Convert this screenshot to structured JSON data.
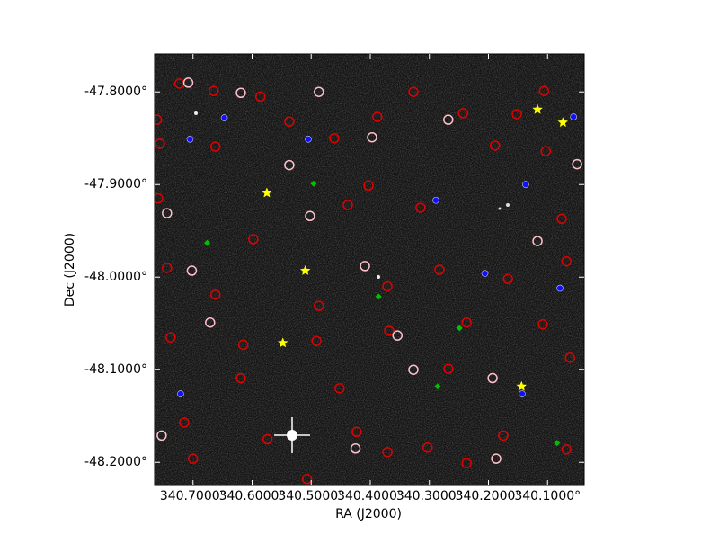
{
  "chart_data": {
    "type": "scatter",
    "xlabel": "RA (J2000)",
    "ylabel": "Dec (J2000)",
    "xlim": [
      340.765,
      340.038
    ],
    "ylim": [
      -48.225,
      -47.759
    ],
    "xticks": [
      {
        "value": 340.7,
        "label": "340.7000°"
      },
      {
        "value": 340.6,
        "label": "340.6000°"
      },
      {
        "value": 340.5,
        "label": "340.5000°"
      },
      {
        "value": 340.4,
        "label": "340.4000°"
      },
      {
        "value": 340.3,
        "label": "340.3000°"
      },
      {
        "value": 340.2,
        "label": "340.2000°"
      },
      {
        "value": 340.1,
        "label": "340.1000°"
      }
    ],
    "yticks": [
      {
        "value": -47.8,
        "label": "-47.8000°"
      },
      {
        "value": -47.9,
        "label": "-47.9000°"
      },
      {
        "value": -48.0,
        "label": "-48.0000°"
      },
      {
        "value": -48.1,
        "label": "-48.1000°"
      },
      {
        "value": -48.2,
        "label": "-48.2000°"
      }
    ],
    "series": [
      {
        "color": "#e00000",
        "marker": "circle",
        "x": [
          340.761,
          340.723,
          340.665,
          340.756,
          340.662,
          340.586,
          340.537,
          340.461,
          340.388,
          340.327,
          340.243,
          340.152,
          340.106,
          340.759,
          340.598,
          340.438,
          340.403,
          340.315,
          340.189,
          340.103,
          340.076,
          340.744,
          340.662,
          340.487,
          340.371,
          340.283,
          340.167,
          340.068,
          340.738,
          340.615,
          340.491,
          340.368,
          340.237,
          340.108,
          340.619,
          340.452,
          340.268,
          340.062,
          340.715,
          340.574,
          340.423,
          340.303,
          340.175,
          340.7,
          340.507,
          340.371,
          340.237,
          340.068
        ],
        "y": [
          -47.83,
          -47.791,
          -47.799,
          -47.856,
          -47.859,
          -47.805,
          -47.832,
          -47.85,
          -47.827,
          -47.8,
          -47.823,
          -47.824,
          -47.799,
          -47.915,
          -47.959,
          -47.922,
          -47.901,
          -47.925,
          -47.858,
          -47.864,
          -47.937,
          -47.99,
          -48.019,
          -48.031,
          -48.01,
          -47.992,
          -48.002,
          -47.983,
          -48.065,
          -48.073,
          -48.069,
          -48.058,
          -48.049,
          -48.051,
          -48.109,
          -48.12,
          -48.099,
          -48.087,
          -48.157,
          -48.175,
          -48.167,
          -48.184,
          -48.171,
          -48.196,
          -48.218,
          -48.189,
          -48.201,
          -48.186
        ]
      },
      {
        "color": "#ffc0cb",
        "marker": "circle",
        "x": [
          340.708,
          340.619,
          340.487,
          340.268,
          340.397,
          340.537,
          340.744,
          340.502,
          340.702,
          340.409,
          340.117,
          340.05,
          340.671,
          340.354,
          340.193,
          340.327,
          340.753,
          340.425,
          340.187
        ],
        "y": [
          -47.79,
          -47.801,
          -47.8,
          -47.83,
          -47.849,
          -47.879,
          -47.931,
          -47.934,
          -47.993,
          -47.988,
          -47.961,
          -47.878,
          -48.049,
          -48.063,
          -48.109,
          -48.1,
          -48.171,
          -48.185,
          -48.196
        ]
      },
      {
        "color": "#1010ff",
        "marker": "dot",
        "x": [
          340.647,
          340.705,
          340.505,
          340.289,
          340.206,
          340.079,
          340.721,
          340.143,
          340.056,
          340.137
        ],
        "y": [
          -47.828,
          -47.851,
          -47.851,
          -47.917,
          -47.996,
          -48.012,
          -48.126,
          -48.126,
          -47.827,
          -47.9
        ]
      },
      {
        "color": "#00c000",
        "marker": "diamond",
        "x": [
          340.496,
          340.386,
          340.286,
          340.084,
          340.676,
          340.249
        ],
        "y": [
          -47.899,
          -48.021,
          -48.118,
          -48.179,
          -47.963,
          -48.055
        ]
      },
      {
        "color": "#ffff00",
        "marker": "star",
        "x": [
          340.575,
          340.51,
          340.548,
          340.117,
          340.074,
          340.144
        ],
        "y": [
          -47.909,
          -47.993,
          -48.071,
          -47.819,
          -47.833,
          -48.118
        ]
      }
    ]
  }
}
